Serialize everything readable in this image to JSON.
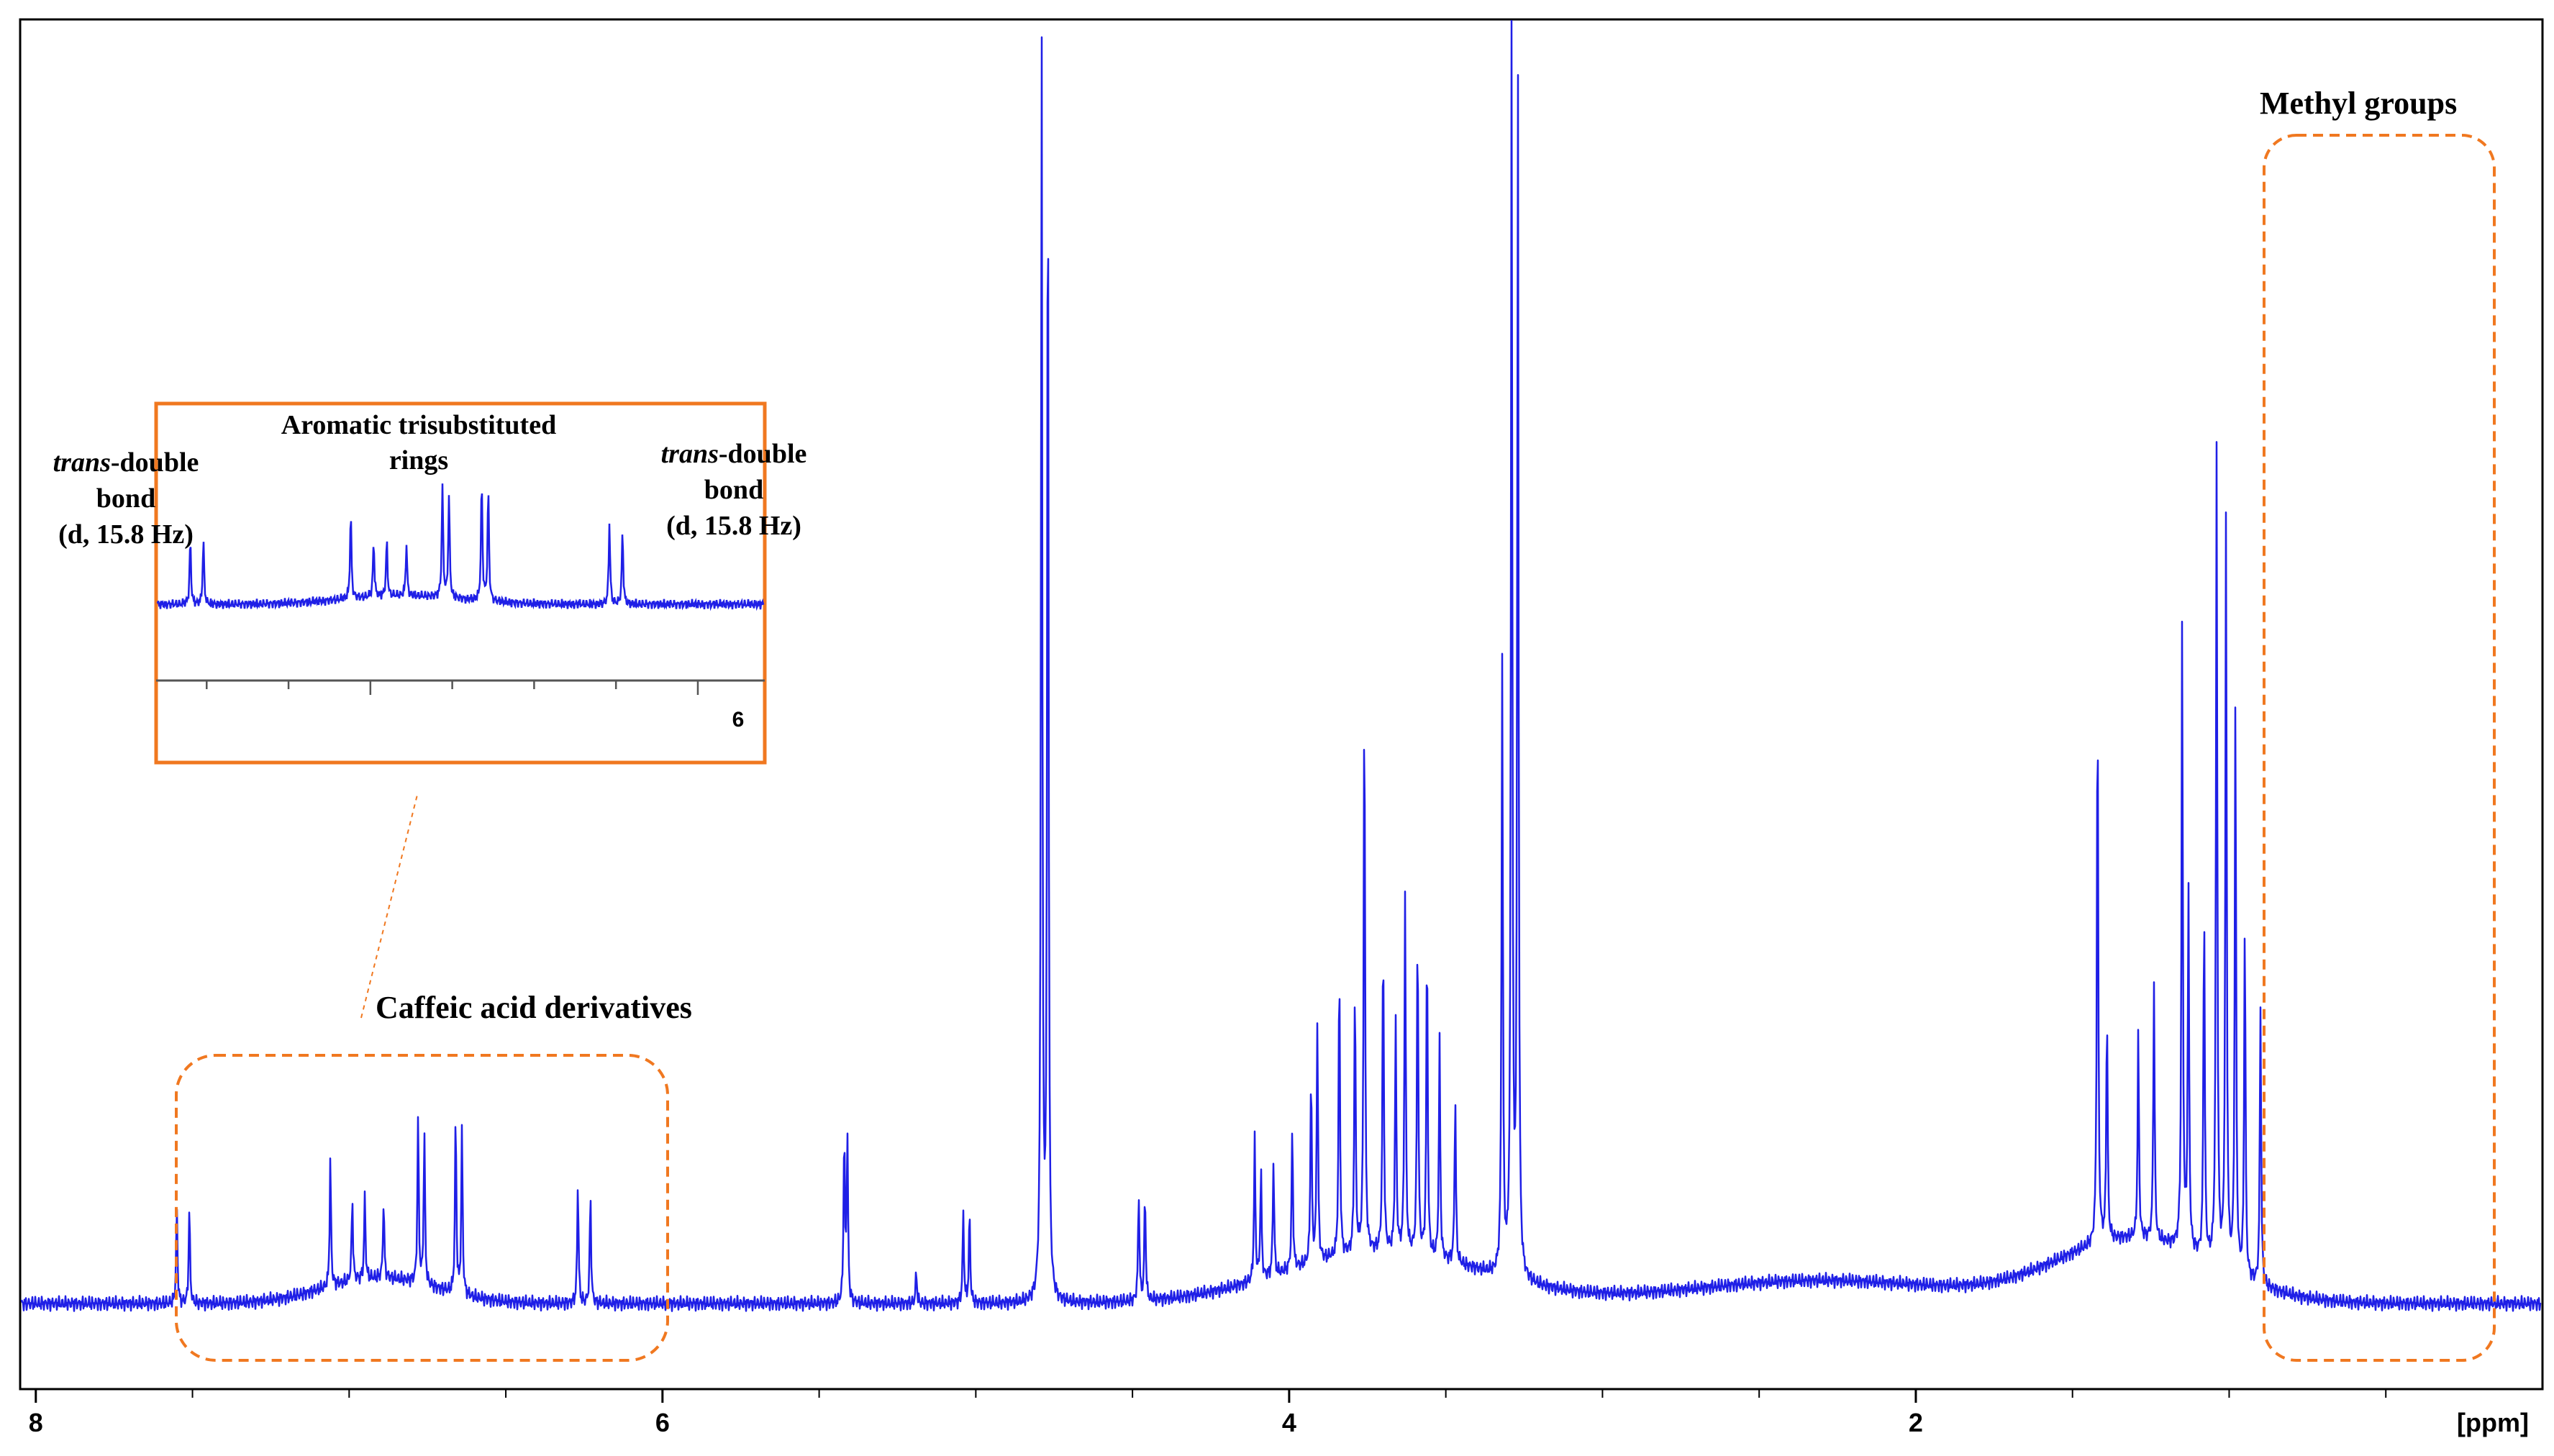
{
  "chart_data": {
    "type": "line",
    "xlabel": "",
    "x_unit": "[ppm]",
    "xlim": [
      8.05,
      0.0
    ],
    "x_reversed": true,
    "x_ticks": [
      "8",
      "6",
      "4",
      "2"
    ],
    "ylabel": "",
    "ylim": [
      0,
      1
    ],
    "grid": false,
    "legend": "none",
    "line_color": "#1f1fe6",
    "highlight_color": "#f07820",
    "peaks_ppm": [
      7.55,
      7.51,
      7.06,
      6.99,
      6.95,
      6.89,
      6.78,
      6.76,
      6.66,
      6.64,
      6.27,
      6.23,
      5.42,
      5.41,
      5.19,
      5.04,
      5.02,
      4.79,
      4.77,
      4.48,
      4.46,
      4.11,
      4.09,
      4.05,
      3.99,
      3.93,
      3.91,
      3.84,
      3.79,
      3.76,
      3.7,
      3.66,
      3.63,
      3.59,
      3.56,
      3.52,
      3.47,
      3.32,
      3.29,
      3.27,
      1.42,
      1.39,
      1.29,
      1.24,
      1.15,
      1.13,
      1.08,
      1.04,
      1.01,
      0.98,
      0.95,
      0.9
    ],
    "peak_heights": [
      0.075,
      0.075,
      0.1,
      0.065,
      0.065,
      0.06,
      0.13,
      0.12,
      0.14,
      0.13,
      0.095,
      0.085,
      0.13,
      0.13,
      0.025,
      0.07,
      0.07,
      1.0,
      0.95,
      0.085,
      0.085,
      0.11,
      0.085,
      0.09,
      0.11,
      0.15,
      0.19,
      0.23,
      0.21,
      0.45,
      0.25,
      0.18,
      0.28,
      0.26,
      0.25,
      0.17,
      0.13,
      0.48,
      1.0,
      0.95,
      0.44,
      0.18,
      0.16,
      0.2,
      0.49,
      0.28,
      0.28,
      0.64,
      0.59,
      0.45,
      0.28,
      0.22
    ],
    "inset": {
      "xlim": [
        7.65,
        5.8
      ],
      "x_ticks": [
        "6"
      ]
    },
    "annotations": {
      "caffeic": "Caffeic acid derivatives",
      "methyl": "Methyl groups",
      "aromatic_line1": "Aromatic trisubstituted",
      "aromatic_line2": "rings",
      "trans_left": {
        "italic": "trans",
        "rest": "-double",
        "line2": "bond",
        "line3": "(d, 15.8 Hz)"
      },
      "trans_right": {
        "italic": "trans",
        "rest": "-double",
        "line2": "bond",
        "line3": "(d, 15.8 Hz)"
      }
    }
  }
}
